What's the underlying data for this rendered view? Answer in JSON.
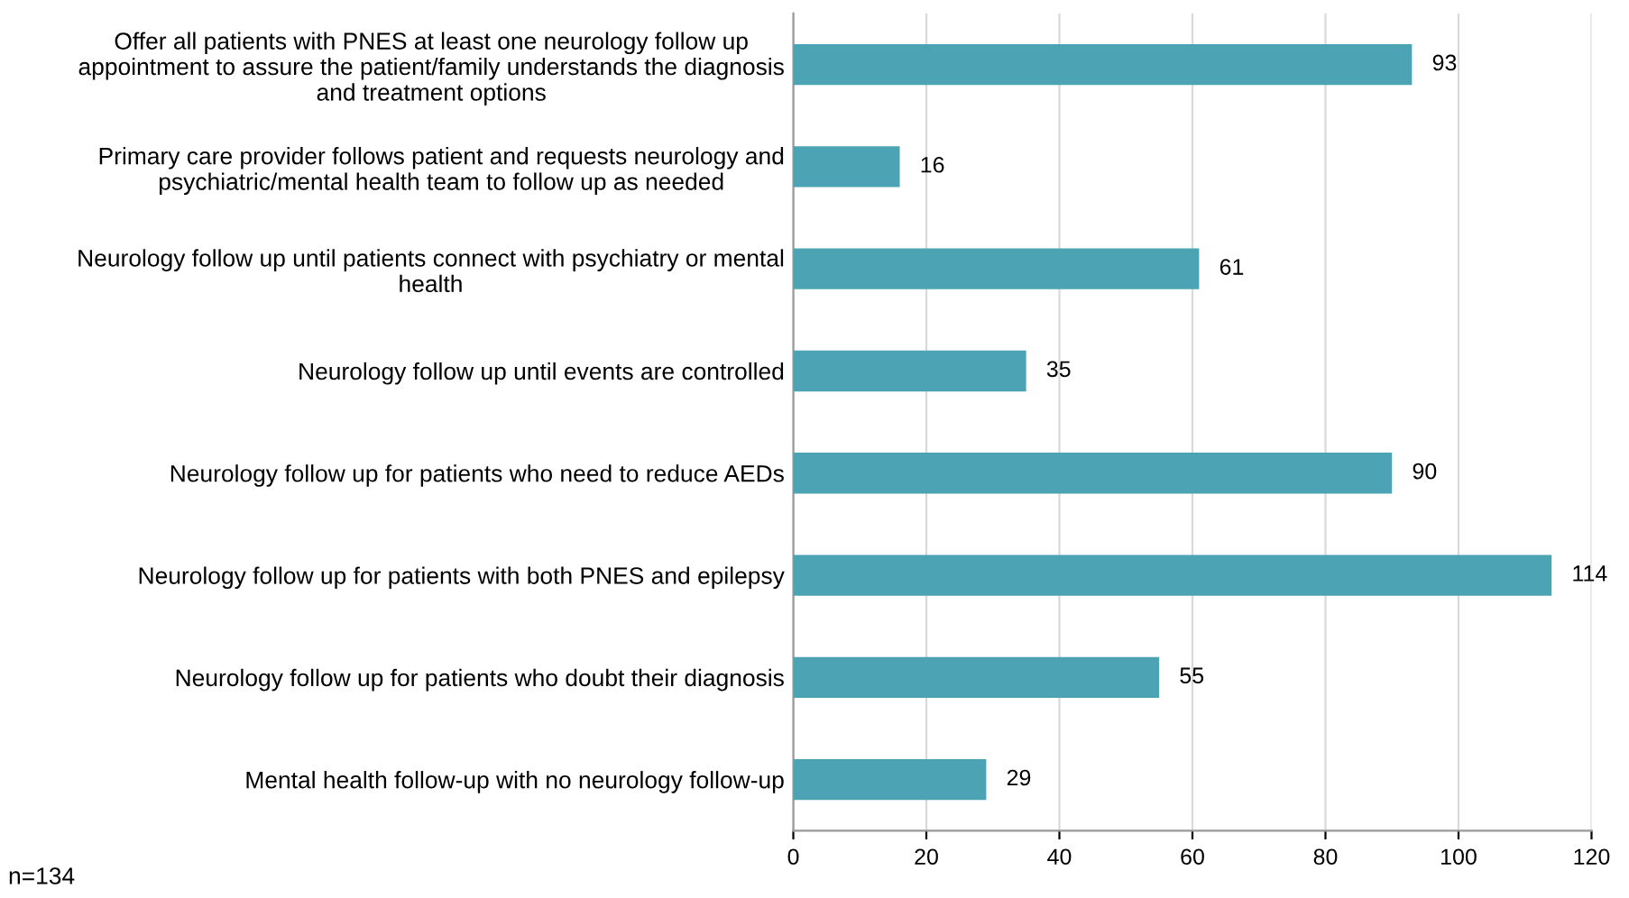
{
  "chart_data": {
    "type": "bar",
    "orientation": "horizontal",
    "categories": [
      "Offer all patients with PNES at least one neurology follow up\nappointment to assure the patient/family understands the diagnosis\nand treatment options",
      "Primary care provider follows patient and requests neurology and\npsychiatric/mental health team to follow up as needed",
      "Neurology follow up until patients connect with psychiatry or mental\nhealth",
      "Neurology follow up until events are controlled",
      "Neurology follow up for patients who need to reduce AEDs",
      "Neurology follow up for patients with both PNES and epilepsy",
      "Neurology follow up for patients who doubt their diagnosis",
      "Mental health follow-up with no neurology follow-up"
    ],
    "values": [
      93,
      16,
      61,
      35,
      90,
      114,
      55,
      29
    ],
    "color": "#4ba3b3",
    "xlim": [
      0,
      120
    ],
    "xticks": [
      0,
      20,
      40,
      60,
      80,
      100,
      120
    ],
    "grid": "x",
    "data_labels": true,
    "legend": false,
    "annotations": [
      "n=134"
    ]
  }
}
